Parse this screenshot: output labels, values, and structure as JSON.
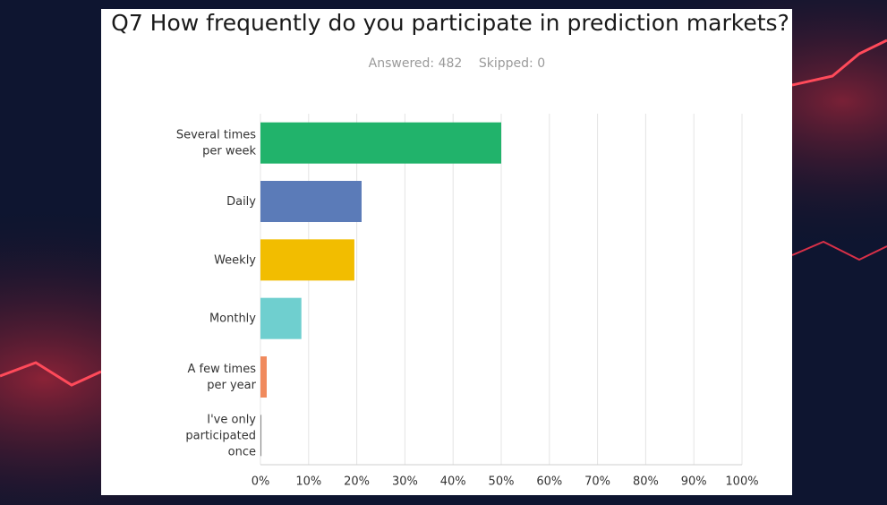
{
  "chart_data": {
    "type": "hbar",
    "title": "Q7 How frequently do you participate in prediction markets?",
    "answered": "Answered: 482",
    "skipped": "Skipped: 0",
    "categories": [
      "Several times per week",
      "Daily",
      "Weekly",
      "Monthly",
      "A few times per year",
      "I've only participated once"
    ],
    "values": [
      50,
      21,
      19.5,
      8.5,
      1.3,
      0.2
    ],
    "colors": [
      "#21b36b",
      "#5b7bb8",
      "#f2bd00",
      "#6fcfcf",
      "#f08a5d",
      "#8a8a8a"
    ],
    "xlim": [
      0,
      100
    ],
    "xticks": [
      {
        "value": 0,
        "label": "0%"
      },
      {
        "value": 10,
        "label": "10%"
      },
      {
        "value": 20,
        "label": "20%"
      },
      {
        "value": 30,
        "label": "30%"
      },
      {
        "value": 40,
        "label": "40%"
      },
      {
        "value": 50,
        "label": "50%"
      },
      {
        "value": 60,
        "label": "60%"
      },
      {
        "value": 70,
        "label": "70%"
      },
      {
        "value": 80,
        "label": "80%"
      },
      {
        "value": 90,
        "label": "90%"
      },
      {
        "value": 100,
        "label": "100%"
      }
    ],
    "grid": true
  }
}
